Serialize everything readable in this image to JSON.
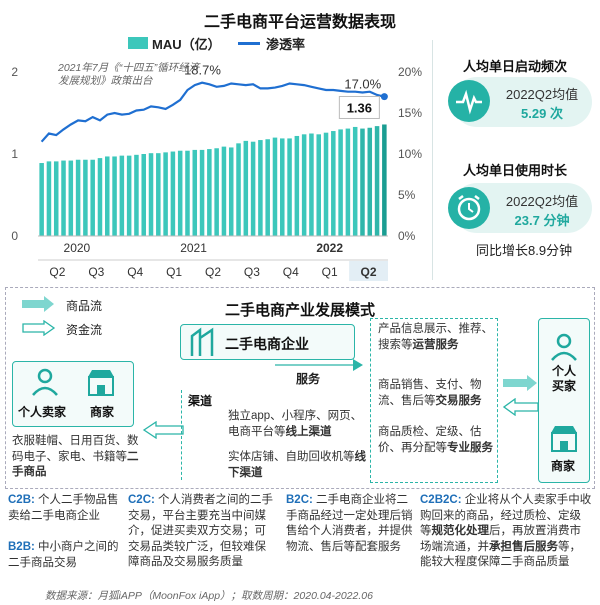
{
  "chart_title": "二手电商平台运营数据表现",
  "chart_data": {
    "type": "bar+line",
    "legend": [
      "MAU（亿）",
      "渗透率"
    ],
    "left_axis_ticks": [
      "2",
      "1",
      "0"
    ],
    "right_axis_ticks": [
      "20%",
      "15%",
      "10%",
      "5%",
      "0%"
    ],
    "ylim_left": [
      0,
      2
    ],
    "ylim_right": [
      0,
      0.2
    ],
    "quarters": [
      "Q2",
      "Q3",
      "Q4",
      "Q1",
      "Q2",
      "Q3",
      "Q4",
      "Q1",
      "Q2"
    ],
    "years": [
      "2020",
      "2021",
      "2022"
    ],
    "bar_values": [
      0.89,
      0.91,
      0.91,
      0.92,
      0.92,
      0.93,
      0.93,
      0.93,
      0.95,
      0.97,
      0.97,
      0.98,
      0.98,
      0.99,
      1.0,
      1.01,
      1.01,
      1.02,
      1.03,
      1.04,
      1.04,
      1.05,
      1.05,
      1.06,
      1.07,
      1.09,
      1.08,
      1.13,
      1.16,
      1.15,
      1.17,
      1.18,
      1.2,
      1.19,
      1.19,
      1.22,
      1.24,
      1.25,
      1.24,
      1.26,
      1.28,
      1.3,
      1.31,
      1.33,
      1.31,
      1.32,
      1.34,
      1.36
    ],
    "line_values": [
      0.115,
      0.125,
      0.123,
      0.13,
      0.136,
      0.141,
      0.14,
      0.145,
      0.141,
      0.148,
      0.15,
      0.148,
      0.149,
      0.153,
      0.154,
      0.158,
      0.157,
      0.155,
      0.16,
      0.166,
      0.178,
      0.184,
      0.187,
      0.185,
      0.182,
      0.183,
      0.186,
      0.185,
      0.184,
      0.185,
      0.18,
      0.18,
      0.181,
      0.183,
      0.186,
      0.185,
      0.184,
      0.182,
      0.18,
      0.178,
      0.178,
      0.177,
      0.176,
      0.176,
      0.175,
      0.176,
      0.172,
      0.17
    ],
    "annotations": {
      "peak": "18.7%",
      "end_rate": "17.0%",
      "end_mau": "1.36",
      "policy_note": "2021年7月《“十四五”循环经济发展规划》政策出台"
    }
  },
  "right_panel": {
    "freq_title": "人均单日启动频次",
    "freq_label": "2022Q2均值",
    "freq_value": "5.29 次",
    "time_title": "人均单日使用时长",
    "time_label": "2022Q2均值",
    "time_value": "23.7 分钟",
    "time_growth": "同比增长8.9分钟"
  },
  "diagram": {
    "title": "二手电商产业发展模式",
    "legend_goods": "商品流",
    "legend_money": "资金流",
    "enterprise": "二手电商企业",
    "individual_seller": "个人卖家",
    "merchant_left": "商家",
    "individual_buyer": "个人买家",
    "merchant_right": "商家",
    "service_label": "服务",
    "channel_label": "渠道",
    "channel_online_pre": "独立app、小程序、网页、电商平台等",
    "channel_online_b": "线上渠道",
    "channel_offline_pre": "实体店铺、自助回收机等",
    "channel_offline_b": "线下渠道",
    "goods_pre": "衣服鞋帽、日用百货、数码电子、家电、书籍等",
    "goods_b": "二手商品",
    "svc1_pre": "产品信息展示、推荐、搜索等",
    "svc1_b": "运营服务",
    "svc2_pre": "商品销售、支付、物流、售后等",
    "svc2_b": "交易服务",
    "svc3_pre": "商品质检、定级、估价、再分配等",
    "svc3_b": "专业服务"
  },
  "bottom": {
    "c2b_h": "C2B:",
    "c2b_t": "个人二手物品售卖给二手电商企业",
    "b2b_h": "B2B:",
    "b2b_t": "中小商户之间的二手商品交易",
    "c2c_h": "C2C:",
    "c2c_t": "个人消费者之间的二手交易，平台主要充当中间媒介，促进买卖双方交易；可交易品类较广泛，但较难保障商品及交易服务质量",
    "b2c_h": "B2C:",
    "b2c_t": "二手电商企业将二手商品经过一定处理后销售给个人消费者，并提供物流、售后等配套服务",
    "c2b2c_h": "C2B2C:",
    "c2b2c_t1": "企业将从个人卖家手中收购回来的商品，经过质检、定级等",
    "c2b2c_b1": "规范化处理",
    "c2b2c_t2": "后，再放置消费市场端流通，并",
    "c2b2c_b2": "承担售后服务",
    "c2b2c_t3": "等，能较大程度保障二手商品质量"
  },
  "source": "数据来源：月狐iAPP（MoonFox iApp）；取数周期：2020.04-2022.06",
  "watermark": "MoonFox",
  "colors": {
    "bar": "#3cc7bb",
    "bar_last": "#1a9d92",
    "line": "#1f6fd1",
    "accent": "#1fa89e"
  }
}
